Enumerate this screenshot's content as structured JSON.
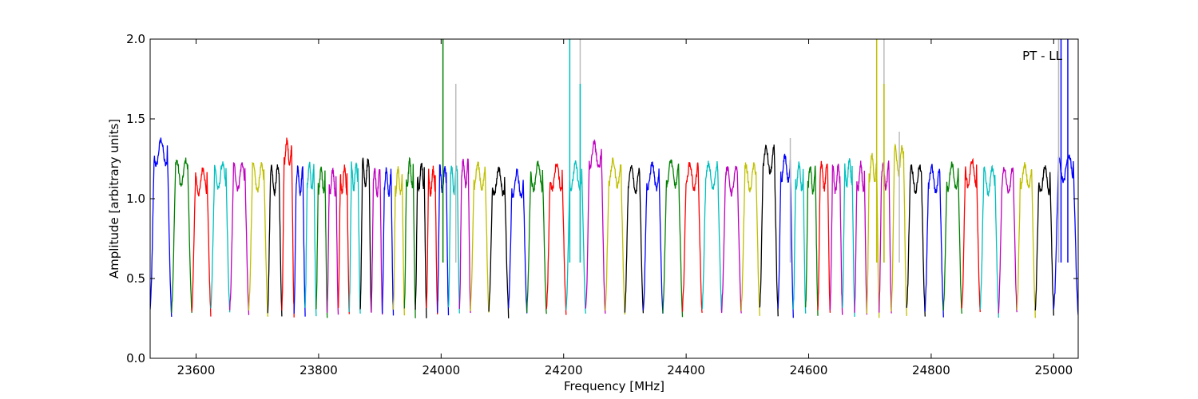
{
  "chart_data": {
    "type": "line",
    "title": "",
    "annotation": "PT - LL",
    "xlabel": "Frequency [MHz]",
    "ylabel": "Amplitude [arbitrary units]",
    "xlim": [
      23525,
      25040
    ],
    "ylim": [
      0.0,
      2.0
    ],
    "xticks": [
      23600,
      23800,
      24000,
      24200,
      24400,
      24600,
      24800,
      25000
    ],
    "yticks": [
      0.0,
      0.5,
      1.0,
      1.5,
      2.0
    ],
    "xtick_labels": [
      "23600",
      "23800",
      "24000",
      "24200",
      "24400",
      "24600",
      "24800",
      "25000"
    ],
    "ytick_labels": [
      "0.0",
      "0.5",
      "1.0",
      "1.5",
      "2.0"
    ],
    "grid": false,
    "legend": "none",
    "color_cycle": [
      "#0000ff",
      "#008000",
      "#ff0000",
      "#00bfbf",
      "#bf00bf",
      "#bfbf00",
      "#000000"
    ],
    "spectral_windows": [
      {
        "start": 23525,
        "end": 23560,
        "peak": 1.35,
        "color": "#0000ff"
      },
      {
        "start": 23560,
        "end": 23593,
        "peak": 1.22,
        "color": "#008000"
      },
      {
        "start": 23593,
        "end": 23624,
        "peak": 1.17,
        "color": "#ff0000"
      },
      {
        "start": 23624,
        "end": 23655,
        "peak": 1.2,
        "color": "#00bfbf"
      },
      {
        "start": 23655,
        "end": 23686,
        "peak": 1.2,
        "color": "#bf00bf"
      },
      {
        "start": 23686,
        "end": 23717,
        "peak": 1.19,
        "color": "#bfbf00"
      },
      {
        "start": 23717,
        "end": 23740,
        "peak": 1.18,
        "color": "#000000"
      },
      {
        "start": 23740,
        "end": 23760,
        "peak": 1.35,
        "color": "#ff0000"
      },
      {
        "start": 23760,
        "end": 23778,
        "peak": 1.17,
        "color": "#0000ff"
      },
      {
        "start": 23778,
        "end": 23796,
        "peak": 1.2,
        "color": "#00bfbf"
      },
      {
        "start": 23796,
        "end": 23814,
        "peak": 1.18,
        "color": "#008000"
      },
      {
        "start": 23814,
        "end": 23832,
        "peak": 1.17,
        "color": "#bf00bf"
      },
      {
        "start": 23832,
        "end": 23850,
        "peak": 1.18,
        "color": "#ff0000"
      },
      {
        "start": 23850,
        "end": 23868,
        "peak": 1.2,
        "color": "#00bfbf"
      },
      {
        "start": 23868,
        "end": 23886,
        "peak": 1.22,
        "color": "#000000"
      },
      {
        "start": 23886,
        "end": 23904,
        "peak": 1.16,
        "color": "#bf00bf"
      },
      {
        "start": 23904,
        "end": 23922,
        "peak": 1.16,
        "color": "#0000ff"
      },
      {
        "start": 23922,
        "end": 23940,
        "peak": 1.17,
        "color": "#bfbf00"
      },
      {
        "start": 23940,
        "end": 23958,
        "peak": 1.22,
        "color": "#008000"
      },
      {
        "start": 23958,
        "end": 23976,
        "peak": 1.2,
        "color": "#000000"
      },
      {
        "start": 23976,
        "end": 23994,
        "peak": 1.17,
        "color": "#ff0000"
      },
      {
        "start": 23994,
        "end": 24012,
        "peak": 1.18,
        "color": "#0000ff"
      },
      {
        "start": 24012,
        "end": 24030,
        "peak": 1.18,
        "color": "#00bfbf"
      },
      {
        "start": 24030,
        "end": 24048,
        "peak": 1.22,
        "color": "#bf00bf"
      },
      {
        "start": 24048,
        "end": 24078,
        "peak": 1.2,
        "color": "#bfbf00"
      },
      {
        "start": 24078,
        "end": 24110,
        "peak": 1.17,
        "color": "#000000"
      },
      {
        "start": 24110,
        "end": 24140,
        "peak": 1.15,
        "color": "#0000ff"
      },
      {
        "start": 24140,
        "end": 24172,
        "peak": 1.2,
        "color": "#008000"
      },
      {
        "start": 24172,
        "end": 24204,
        "peak": 1.2,
        "color": "#ff0000"
      },
      {
        "start": 24204,
        "end": 24236,
        "peak": 1.2,
        "color": "#00bfbf"
      },
      {
        "start": 24236,
        "end": 24268,
        "peak": 1.33,
        "color": "#bf00bf"
      },
      {
        "start": 24268,
        "end": 24300,
        "peak": 1.22,
        "color": "#bfbf00"
      },
      {
        "start": 24300,
        "end": 24330,
        "peak": 1.18,
        "color": "#000000"
      },
      {
        "start": 24330,
        "end": 24362,
        "peak": 1.2,
        "color": "#0000ff"
      },
      {
        "start": 24362,
        "end": 24394,
        "peak": 1.22,
        "color": "#008000"
      },
      {
        "start": 24394,
        "end": 24426,
        "peak": 1.2,
        "color": "#ff0000"
      },
      {
        "start": 24426,
        "end": 24458,
        "peak": 1.2,
        "color": "#00bfbf"
      },
      {
        "start": 24458,
        "end": 24490,
        "peak": 1.17,
        "color": "#bf00bf"
      },
      {
        "start": 24490,
        "end": 24520,
        "peak": 1.19,
        "color": "#bfbf00"
      },
      {
        "start": 24520,
        "end": 24550,
        "peak": 1.3,
        "color": "#000000"
      },
      {
        "start": 24550,
        "end": 24575,
        "peak": 1.25,
        "color": "#0000ff"
      },
      {
        "start": 24575,
        "end": 24595,
        "peak": 1.2,
        "color": "#00bfbf"
      },
      {
        "start": 24595,
        "end": 24615,
        "peak": 1.18,
        "color": "#008000"
      },
      {
        "start": 24615,
        "end": 24635,
        "peak": 1.2,
        "color": "#ff0000"
      },
      {
        "start": 24635,
        "end": 24655,
        "peak": 1.18,
        "color": "#bf00bf"
      },
      {
        "start": 24655,
        "end": 24675,
        "peak": 1.22,
        "color": "#00bfbf"
      },
      {
        "start": 24675,
        "end": 24695,
        "peak": 1.2,
        "color": "#bf00bf"
      },
      {
        "start": 24695,
        "end": 24715,
        "peak": 1.25,
        "color": "#bfbf00"
      },
      {
        "start": 24715,
        "end": 24735,
        "peak": 1.2,
        "color": "#bf00bf"
      },
      {
        "start": 24735,
        "end": 24760,
        "peak": 1.3,
        "color": "#bfbf00"
      },
      {
        "start": 24760,
        "end": 24790,
        "peak": 1.18,
        "color": "#000000"
      },
      {
        "start": 24790,
        "end": 24820,
        "peak": 1.18,
        "color": "#0000ff"
      },
      {
        "start": 24820,
        "end": 24850,
        "peak": 1.2,
        "color": "#008000"
      },
      {
        "start": 24850,
        "end": 24880,
        "peak": 1.22,
        "color": "#ff0000"
      },
      {
        "start": 24880,
        "end": 24910,
        "peak": 1.17,
        "color": "#00bfbf"
      },
      {
        "start": 24910,
        "end": 24940,
        "peak": 1.17,
        "color": "#bf00bf"
      },
      {
        "start": 24940,
        "end": 24970,
        "peak": 1.2,
        "color": "#bfbf00"
      },
      {
        "start": 24970,
        "end": 25000,
        "peak": 1.18,
        "color": "#000000"
      },
      {
        "start": 25000,
        "end": 25040,
        "peak": 1.25,
        "color": "#0000ff"
      }
    ],
    "spikes": [
      {
        "x": 24003,
        "y": 2.0,
        "color": "#008000"
      },
      {
        "x": 24024,
        "y": 1.72,
        "color": "#bbbbbb"
      },
      {
        "x": 24210,
        "y": 2.0,
        "color": "#00bfbf"
      },
      {
        "x": 24227,
        "y": 2.0,
        "color": "#bbbbbb"
      },
      {
        "x": 24227,
        "y": 1.72,
        "color": "#00bfbf"
      },
      {
        "x": 24711,
        "y": 2.0,
        "color": "#bfbf00"
      },
      {
        "x": 24723,
        "y": 2.0,
        "color": "#bbbbbb"
      },
      {
        "x": 24723,
        "y": 1.72,
        "color": "#bfbf00"
      },
      {
        "x": 24570,
        "y": 1.38,
        "color": "#bbbbbb"
      },
      {
        "x": 24748,
        "y": 1.42,
        "color": "#bbbbbb"
      },
      {
        "x": 25012,
        "y": 2.0,
        "color": "#0000ff"
      },
      {
        "x": 25023,
        "y": 2.0,
        "color": "#0000ff"
      },
      {
        "x": 25008,
        "y": 2.0,
        "color": "#bbbbbb"
      }
    ]
  }
}
